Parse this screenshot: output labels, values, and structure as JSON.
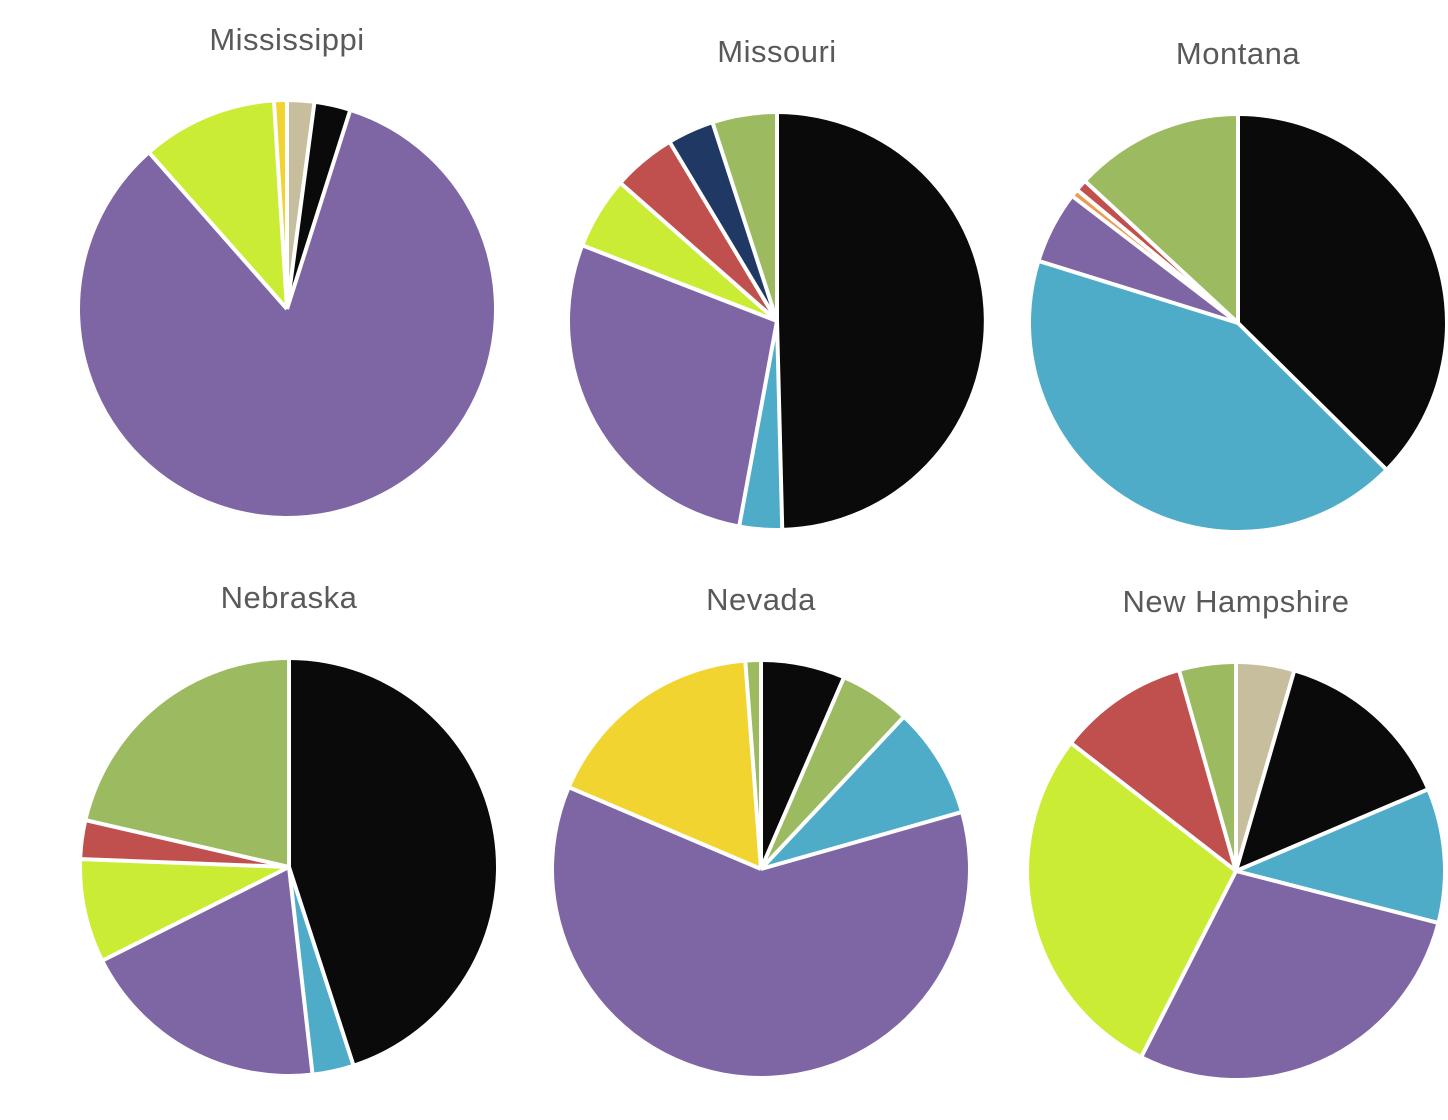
{
  "page": {
    "background_color": "#FFFFFF",
    "title_text_color": "#595959"
  },
  "palette": {
    "black": "#0A0A0A",
    "purple": "#7E66A4",
    "chartreuse": "#CBEC34",
    "golden_yellow": "#F2D430",
    "tan": "#C7BE9D",
    "olive_green": "#9CBB61",
    "teal_blue": "#4EACC8",
    "brick_red": "#C0504D",
    "navy": "#1F3864",
    "orange": "#EC9B55"
  },
  "pie_style": {
    "start_angle_deg": 0,
    "direction": "clockwise",
    "separator_color": "#FFFFFF",
    "separator_width": 4
  },
  "chart_data": [
    {
      "type": "pie",
      "title": "Mississippi",
      "legend": "none",
      "slices": [
        {
          "color_name": "tan",
          "color": "#C7BE9D",
          "value": 2.1
        },
        {
          "color_name": "black",
          "color": "#0A0A0A",
          "value": 2.8
        },
        {
          "color_name": "purple",
          "color": "#7E66A4",
          "value": 83.6
        },
        {
          "color_name": "chartreuse",
          "color": "#CBEC34",
          "value": 10.5
        },
        {
          "color_name": "golden_yellow",
          "color": "#F2D430",
          "value": 1.0
        }
      ]
    },
    {
      "type": "pie",
      "title": "Missouri",
      "legend": "none",
      "slices": [
        {
          "color_name": "black",
          "color": "#0A0A0A",
          "value": 49.6
        },
        {
          "color_name": "teal_blue",
          "color": "#4EACC8",
          "value": 3.3
        },
        {
          "color_name": "purple",
          "color": "#7E66A4",
          "value": 28.0
        },
        {
          "color_name": "chartreuse",
          "color": "#CBEC34",
          "value": 5.6
        },
        {
          "color_name": "brick_red",
          "color": "#C0504D",
          "value": 4.9
        },
        {
          "color_name": "navy",
          "color": "#1F3864",
          "value": 3.6
        },
        {
          "color_name": "olive_green",
          "color": "#9CBB61",
          "value": 5.0
        }
      ]
    },
    {
      "type": "pie",
      "title": "Montana",
      "legend": "none",
      "slices": [
        {
          "color_name": "black",
          "color": "#0A0A0A",
          "value": 37.4
        },
        {
          "color_name": "teal_blue",
          "color": "#4EACC8",
          "value": 42.4
        },
        {
          "color_name": "purple",
          "color": "#7E66A4",
          "value": 5.6
        },
        {
          "color_name": "orange",
          "color": "#EC9B55",
          "value": 0.6
        },
        {
          "color_name": "brick_red",
          "color": "#C0504D",
          "value": 0.9
        },
        {
          "color_name": "olive_green",
          "color": "#9CBB61",
          "value": 13.1
        }
      ]
    },
    {
      "type": "pie",
      "title": "Nebraska",
      "legend": "none",
      "slices": [
        {
          "color_name": "black",
          "color": "#0A0A0A",
          "value": 45.0
        },
        {
          "color_name": "teal_blue",
          "color": "#4EACC8",
          "value": 3.2
        },
        {
          "color_name": "purple",
          "color": "#7E66A4",
          "value": 19.4
        },
        {
          "color_name": "chartreuse",
          "color": "#CBEC34",
          "value": 8.0
        },
        {
          "color_name": "brick_red",
          "color": "#C0504D",
          "value": 3.0
        },
        {
          "color_name": "olive_green",
          "color": "#9CBB61",
          "value": 21.4
        }
      ]
    },
    {
      "type": "pie",
      "title": "Nevada",
      "legend": "none",
      "slices": [
        {
          "color_name": "black",
          "color": "#0A0A0A",
          "value": 6.5
        },
        {
          "color_name": "olive_green",
          "color": "#9CBB61",
          "value": 5.5
        },
        {
          "color_name": "teal_blue",
          "color": "#4EACC8",
          "value": 8.6
        },
        {
          "color_name": "purple",
          "color": "#7E66A4",
          "value": 60.8
        },
        {
          "color_name": "golden_yellow",
          "color": "#F2D430",
          "value": 17.4
        },
        {
          "color_name": "olive_green",
          "color": "#9CBB61",
          "value": 1.2
        }
      ]
    },
    {
      "type": "pie",
      "title": "New Hampshire",
      "legend": "none",
      "slices": [
        {
          "color_name": "tan",
          "color": "#C7BE9D",
          "value": 4.5
        },
        {
          "color_name": "black",
          "color": "#0A0A0A",
          "value": 14.1
        },
        {
          "color_name": "teal_blue",
          "color": "#4EACC8",
          "value": 10.4
        },
        {
          "color_name": "purple",
          "color": "#7E66A4",
          "value": 28.5
        },
        {
          "color_name": "chartreuse",
          "color": "#CBEC34",
          "value": 28.0
        },
        {
          "color_name": "brick_red",
          "color": "#C0504D",
          "value": 10.1
        },
        {
          "color_name": "olive_green",
          "color": "#9CBB61",
          "value": 4.4
        }
      ]
    }
  ]
}
